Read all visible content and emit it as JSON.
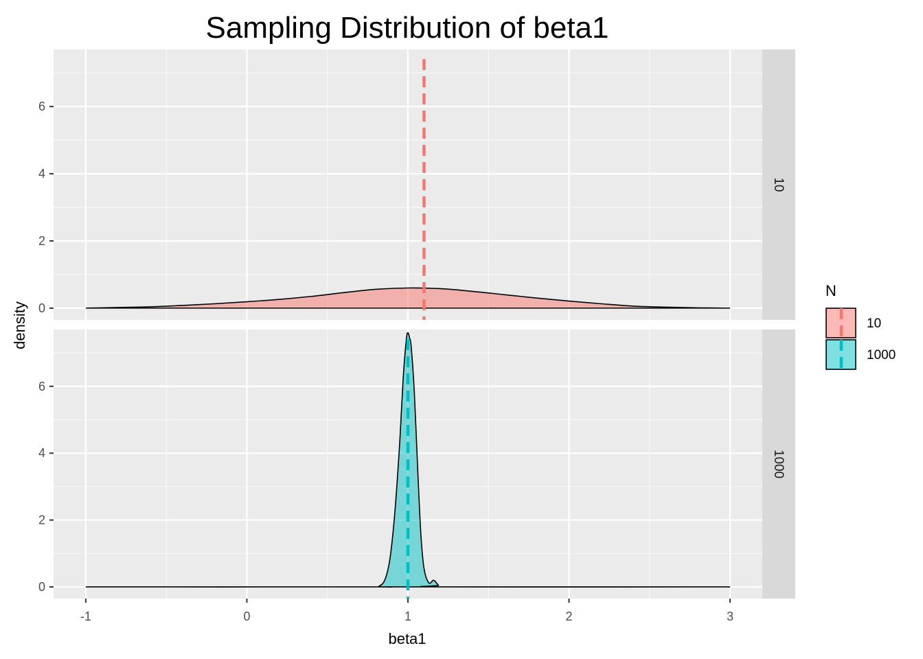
{
  "chart_data": {
    "type": "area",
    "title": "Sampling Distribution of beta1",
    "xlabel": "beta1",
    "ylabel": "density",
    "xlim": [
      -1.2,
      3.2
    ],
    "ylim": [
      -0.35,
      7.7
    ],
    "xticks": [
      -1,
      0,
      1,
      2,
      3
    ],
    "xtick_labels": [
      "-1",
      "0",
      "1",
      "2",
      "3"
    ],
    "yticks": [
      0,
      2,
      4,
      6
    ],
    "ytick_labels": [
      "0",
      "2",
      "4",
      "6"
    ],
    "grid": true,
    "facet_by": "N",
    "legend": {
      "title": "N",
      "position": "right",
      "entries": [
        {
          "label": "10",
          "fill": "#F8766D",
          "line": "#F8766D"
        },
        {
          "label": "1000",
          "fill": "#00BFC4",
          "line": "#00BFC4"
        }
      ]
    },
    "series": [
      {
        "name": "10",
        "facet_label": "10",
        "color": "#F8766D",
        "mean_line": 1.1,
        "x": [
          -1.0,
          -0.8,
          -0.6,
          -0.4,
          -0.2,
          0.0,
          0.2,
          0.4,
          0.6,
          0.8,
          1.0,
          1.2,
          1.4,
          1.6,
          1.8,
          2.0,
          2.2,
          2.4,
          2.6,
          2.8,
          3.0
        ],
        "y": [
          0.0,
          0.02,
          0.04,
          0.08,
          0.13,
          0.19,
          0.26,
          0.35,
          0.46,
          0.56,
          0.6,
          0.58,
          0.5,
          0.4,
          0.3,
          0.21,
          0.13,
          0.06,
          0.03,
          0.01,
          0.0
        ]
      },
      {
        "name": "1000",
        "facet_label": "1000",
        "color": "#00BFC4",
        "mean_line": 1.0,
        "x": [
          -1.0,
          0.75,
          0.82,
          0.86,
          0.89,
          0.92,
          0.95,
          0.97,
          0.99,
          1.0,
          1.01,
          1.02,
          1.04,
          1.06,
          1.08,
          1.1,
          1.13,
          1.16,
          1.19,
          1.22,
          3.0
        ],
        "y": [
          0.0,
          0.0,
          0.02,
          0.25,
          0.9,
          2.3,
          4.4,
          6.2,
          7.4,
          7.6,
          7.45,
          7.2,
          5.8,
          3.6,
          1.6,
          0.55,
          0.12,
          0.2,
          0.05,
          0.0,
          0.0
        ]
      }
    ]
  }
}
